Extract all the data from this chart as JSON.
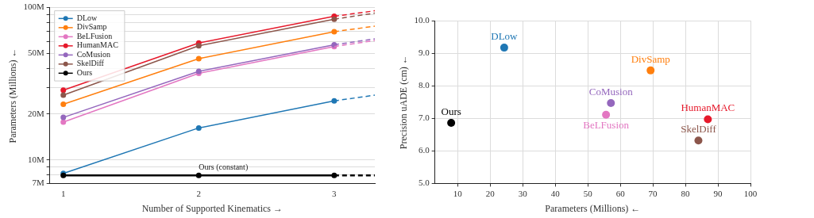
{
  "chart_data": [
    {
      "type": "line",
      "xlabel": "Number of Supported Kinematics →",
      "ylabel": "Parameters (Millions) ←",
      "x": [
        1,
        2,
        3
      ],
      "xlim": [
        0.9,
        3.3
      ],
      "xticks": [
        1,
        2,
        3
      ],
      "ylim": [
        7,
        100
      ],
      "log": "y",
      "yticks": [
        {
          "value": 7,
          "label": "7M"
        },
        {
          "value": 8,
          "label": null
        },
        {
          "value": 9,
          "label": null
        },
        {
          "value": 10,
          "label": "10M"
        },
        {
          "value": 20,
          "label": "20M"
        },
        {
          "value": 30,
          "label": null
        },
        {
          "value": 40,
          "label": null
        },
        {
          "value": 50,
          "label": "50M"
        },
        {
          "value": 60,
          "label": null
        },
        {
          "value": 70,
          "label": null
        },
        {
          "value": 80,
          "label": null
        },
        {
          "value": 90,
          "label": null
        },
        {
          "value": 100,
          "label": "100M"
        }
      ],
      "grid": "y",
      "legend": "top left",
      "marker": "circle",
      "line_style": "solid",
      "series": [
        {
          "name": "DLow",
          "color": "#1f77b4",
          "values": [
            8.15,
            16.2,
            24.4
          ]
        },
        {
          "name": "DivSamp",
          "color": "#ff7f0e",
          "values": [
            23.2,
            46.2,
            69.5
          ]
        },
        {
          "name": "BeLFusion",
          "color": "#e377c2",
          "values": [
            17.7,
            37,
            55.5
          ]
        },
        {
          "name": "HumanMAC",
          "color": "#e6192b",
          "values": [
            28.7,
            58.6,
            87.7
          ]
        },
        {
          "name": "CoMusion",
          "color": "#9467bd",
          "values": [
            19,
            38.1,
            57
          ]
        },
        {
          "name": "SkelDiff",
          "color": "#8c564b",
          "values": [
            26.6,
            56.1,
            84
          ]
        },
        {
          "name": "Ours",
          "color": "#000000",
          "values": [
            7.9,
            7.9,
            7.9
          ]
        },
        {
          "color": "#1f77b4",
          "x": [
            3,
            3.3
          ],
          "values": [
            24.4,
            26.6
          ],
          "line_style": "dashed",
          "marker": "none"
        },
        {
          "color": "#ff7f0e",
          "x": [
            3,
            3.3
          ],
          "values": [
            69.5,
            75.5
          ],
          "line_style": "dashed",
          "marker": "none"
        },
        {
          "color": "#e377c2",
          "x": [
            3,
            3.3
          ],
          "values": [
            55.5,
            60.8
          ],
          "line_style": "dashed",
          "marker": "none"
        },
        {
          "color": "#e6192b",
          "x": [
            3,
            3.3
          ],
          "values": [
            87.7,
            95.3
          ],
          "line_style": "dashed",
          "marker": "none"
        },
        {
          "color": "#9467bd",
          "x": [
            3,
            3.3
          ],
          "values": [
            57,
            62.4
          ],
          "line_style": "dashed",
          "marker": "none"
        },
        {
          "color": "#8c564b",
          "x": [
            3,
            3.3
          ],
          "values": [
            84,
            92
          ],
          "line_style": "dashed",
          "marker": "none"
        },
        {
          "color": "#000000",
          "x": [
            3,
            3.3
          ],
          "values": [
            7.9,
            7.9
          ],
          "line_style": "dashed",
          "marker": "none"
        }
      ],
      "annotations": [
        {
          "text": "Ours (constant)",
          "x": 2,
          "y": 7.9
        }
      ]
    },
    {
      "type": "scatter",
      "xlabel": "Parameters (Millions) ←",
      "ylabel": "Precision uADE (cm) ←",
      "xlim": [
        3,
        100
      ],
      "xticks": [
        10,
        20,
        30,
        40,
        50,
        60,
        70,
        80,
        90,
        100
      ],
      "ylim": [
        5,
        10
      ],
      "yticks": [
        {
          "value": 5,
          "label": "5.0"
        },
        {
          "value": 6,
          "label": "6.0"
        },
        {
          "value": 7,
          "label": "7.0"
        },
        {
          "value": 8,
          "label": "8.0"
        },
        {
          "value": 9,
          "label": "9.0"
        },
        {
          "value": 10,
          "label": "10.0"
        }
      ],
      "grid": true,
      "legend": false,
      "marker": "circle",
      "series": [
        {
          "name": "DLow",
          "color": "#1f77b4",
          "x": [
            24.3
          ],
          "values": [
            9.17
          ]
        },
        {
          "name": "DivSamp",
          "color": "#ff7f0e",
          "x": [
            69.3
          ],
          "values": [
            8.47
          ]
        },
        {
          "name": "BeLFusion",
          "color": "#e377c2",
          "x": [
            55.6
          ],
          "values": [
            7.11
          ]
        },
        {
          "name": "HumanMAC",
          "color": "#e6192b",
          "x": [
            86.9
          ],
          "values": [
            6.97
          ]
        },
        {
          "name": "CoMusion",
          "color": "#9467bd",
          "x": [
            57.1
          ],
          "values": [
            7.47
          ]
        },
        {
          "name": "SkelDiff",
          "color": "#8c564b",
          "x": [
            84
          ],
          "values": [
            6.32
          ]
        },
        {
          "name": "Ours",
          "color": "#000000",
          "x": [
            8
          ],
          "values": [
            6.86
          ]
        }
      ]
    }
  ]
}
